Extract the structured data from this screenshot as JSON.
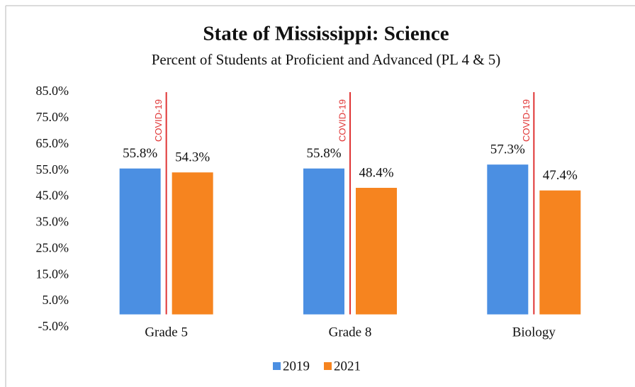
{
  "chart_data": {
    "type": "bar",
    "title": "State of Mississippi: Science",
    "subtitle": "Percent of Students at Proficient and Advanced (PL 4 & 5)",
    "annotation": "COVID-19",
    "categories": [
      "Grade 5",
      "Grade 8",
      "Biology"
    ],
    "series": [
      {
        "name": "2019",
        "color": "#4b8fe2",
        "values": [
          55.8,
          55.8,
          57.3
        ],
        "value_labels": [
          "55.8%",
          "55.8%",
          "57.3%"
        ]
      },
      {
        "name": "2021",
        "color": "#f6841f",
        "values": [
          54.3,
          48.4,
          47.4
        ],
        "value_labels": [
          "54.3%",
          "48.4%",
          "47.4%"
        ]
      }
    ],
    "ylim": [
      -5,
      85
    ],
    "yticks": [
      {
        "value": -5,
        "label": "-5.0%"
      },
      {
        "value": 5,
        "label": "5.0%"
      },
      {
        "value": 15,
        "label": "15.0%"
      },
      {
        "value": 25,
        "label": "25.0%"
      },
      {
        "value": 35,
        "label": "35.0%"
      },
      {
        "value": 45,
        "label": "45.0%"
      },
      {
        "value": 55,
        "label": "55.0%"
      },
      {
        "value": 65,
        "label": "65.0%"
      },
      {
        "value": 75,
        "label": "75.0%"
      },
      {
        "value": 85,
        "label": "85.0%"
      }
    ],
    "grid": false
  }
}
